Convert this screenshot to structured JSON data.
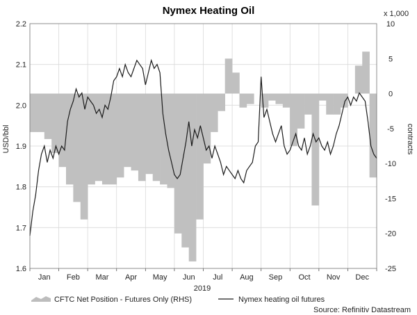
{
  "chart_data": {
    "type": "line",
    "title": "Nymex Heating Oil",
    "year_label": "2019",
    "source": "Source: Refinitiv Datastream",
    "ylabel_left": "USD/bbl",
    "ylabel_right": "contracts",
    "right_multiplier": "x 1,000",
    "left_axis": {
      "ylim": [
        1.6,
        2.2
      ],
      "ticks": [
        "1.6",
        "1.7",
        "1.8",
        "1.9",
        "2.0",
        "2.1",
        "2.2"
      ]
    },
    "right_axis": {
      "ylim": [
        -25,
        10
      ],
      "ticks": [
        "-25",
        "-20",
        "-15",
        "-10",
        "-5",
        "0",
        "5",
        "10"
      ]
    },
    "x_range": [
      0,
      12
    ],
    "x_tick_labels": [
      "Jan",
      "Feb",
      "Mar",
      "Apr",
      "May",
      "Jun",
      "Jul",
      "Aug",
      "Sep",
      "Oct",
      "Nov",
      "Dec"
    ],
    "grid": true,
    "legend_position": "bottom",
    "series": [
      {
        "name": "CFTC Net Position - Futures Only (RHS)",
        "kind": "area",
        "axis": "right",
        "color": "#c0c0c0",
        "points": [
          [
            0.0,
            -5.5
          ],
          [
            0.25,
            -5.5
          ],
          [
            0.5,
            -6.5
          ],
          [
            0.75,
            -8.5
          ],
          [
            1.0,
            -10.5
          ],
          [
            1.25,
            -13
          ],
          [
            1.5,
            -15.5
          ],
          [
            1.75,
            -18
          ],
          [
            2.0,
            -13
          ],
          [
            2.25,
            -12.5
          ],
          [
            2.5,
            -13
          ],
          [
            2.75,
            -13
          ],
          [
            3.0,
            -12
          ],
          [
            3.25,
            -10.5
          ],
          [
            3.5,
            -11
          ],
          [
            3.75,
            -12.5
          ],
          [
            4.0,
            -11.5
          ],
          [
            4.25,
            -12.5
          ],
          [
            4.5,
            -13
          ],
          [
            4.75,
            -13.5
          ],
          [
            5.0,
            -20
          ],
          [
            5.25,
            -22
          ],
          [
            5.5,
            -24
          ],
          [
            5.75,
            -18
          ],
          [
            6.0,
            -10
          ],
          [
            6.25,
            -5.5
          ],
          [
            6.5,
            -2.5
          ],
          [
            6.75,
            5
          ],
          [
            7.0,
            3
          ],
          [
            7.25,
            -2
          ],
          [
            7.5,
            -1.5
          ],
          [
            7.75,
            0
          ],
          [
            8.0,
            -2
          ],
          [
            8.25,
            -1
          ],
          [
            8.5,
            -1.5
          ],
          [
            8.75,
            -2
          ],
          [
            9.0,
            -7.5
          ],
          [
            9.25,
            -5
          ],
          [
            9.5,
            -3
          ],
          [
            9.75,
            -16
          ],
          [
            10.0,
            -1
          ],
          [
            10.25,
            -3
          ],
          [
            10.5,
            -3
          ],
          [
            10.75,
            -2
          ],
          [
            11.0,
            0
          ],
          [
            11.25,
            4
          ],
          [
            11.5,
            6
          ],
          [
            11.75,
            -12
          ]
        ]
      },
      {
        "name": "Nymex heating oil futures",
        "kind": "line",
        "axis": "left",
        "color": "#1a1a1a",
        "points": [
          [
            0.0,
            1.68
          ],
          [
            0.1,
            1.74
          ],
          [
            0.2,
            1.78
          ],
          [
            0.3,
            1.84
          ],
          [
            0.4,
            1.88
          ],
          [
            0.5,
            1.9
          ],
          [
            0.6,
            1.86
          ],
          [
            0.7,
            1.89
          ],
          [
            0.8,
            1.87
          ],
          [
            0.9,
            1.9
          ],
          [
            1.0,
            1.88
          ],
          [
            1.1,
            1.9
          ],
          [
            1.2,
            1.89
          ],
          [
            1.3,
            1.96
          ],
          [
            1.4,
            1.99
          ],
          [
            1.5,
            2.01
          ],
          [
            1.6,
            2.04
          ],
          [
            1.7,
            2.02
          ],
          [
            1.8,
            2.03
          ],
          [
            1.9,
            1.99
          ],
          [
            2.0,
            2.02
          ],
          [
            2.1,
            2.01
          ],
          [
            2.2,
            2.0
          ],
          [
            2.3,
            1.98
          ],
          [
            2.4,
            1.99
          ],
          [
            2.5,
            1.97
          ],
          [
            2.6,
            2.0
          ],
          [
            2.7,
            1.99
          ],
          [
            2.8,
            2.02
          ],
          [
            2.9,
            2.06
          ],
          [
            3.0,
            2.07
          ],
          [
            3.1,
            2.09
          ],
          [
            3.2,
            2.07
          ],
          [
            3.3,
            2.1
          ],
          [
            3.4,
            2.08
          ],
          [
            3.5,
            2.07
          ],
          [
            3.6,
            2.09
          ],
          [
            3.7,
            2.11
          ],
          [
            3.8,
            2.1
          ],
          [
            3.9,
            2.09
          ],
          [
            4.0,
            2.05
          ],
          [
            4.1,
            2.08
          ],
          [
            4.2,
            2.11
          ],
          [
            4.3,
            2.09
          ],
          [
            4.4,
            2.1
          ],
          [
            4.5,
            2.08
          ],
          [
            4.6,
            1.98
          ],
          [
            4.7,
            1.93
          ],
          [
            4.8,
            1.89
          ],
          [
            4.9,
            1.86
          ],
          [
            5.0,
            1.83
          ],
          [
            5.1,
            1.82
          ],
          [
            5.2,
            1.83
          ],
          [
            5.3,
            1.87
          ],
          [
            5.4,
            1.91
          ],
          [
            5.5,
            1.96
          ],
          [
            5.6,
            1.9
          ],
          [
            5.7,
            1.94
          ],
          [
            5.8,
            1.92
          ],
          [
            5.9,
            1.95
          ],
          [
            6.0,
            1.92
          ],
          [
            6.1,
            1.89
          ],
          [
            6.2,
            1.9
          ],
          [
            6.3,
            1.87
          ],
          [
            6.4,
            1.9
          ],
          [
            6.5,
            1.88
          ],
          [
            6.6,
            1.86
          ],
          [
            6.7,
            1.83
          ],
          [
            6.8,
            1.85
          ],
          [
            6.9,
            1.84
          ],
          [
            7.0,
            1.83
          ],
          [
            7.1,
            1.82
          ],
          [
            7.2,
            1.84
          ],
          [
            7.3,
            1.82
          ],
          [
            7.4,
            1.81
          ],
          [
            7.5,
            1.84
          ],
          [
            7.6,
            1.85
          ],
          [
            7.7,
            1.86
          ],
          [
            7.8,
            1.9
          ],
          [
            7.9,
            1.91
          ],
          [
            8.0,
            2.07
          ],
          [
            8.1,
            1.97
          ],
          [
            8.2,
            1.99
          ],
          [
            8.3,
            1.96
          ],
          [
            8.4,
            1.93
          ],
          [
            8.5,
            1.91
          ],
          [
            8.6,
            1.93
          ],
          [
            8.7,
            1.95
          ],
          [
            8.8,
            1.9
          ],
          [
            8.9,
            1.88
          ],
          [
            9.0,
            1.89
          ],
          [
            9.1,
            1.91
          ],
          [
            9.2,
            1.93
          ],
          [
            9.3,
            1.9
          ],
          [
            9.4,
            1.89
          ],
          [
            9.5,
            1.92
          ],
          [
            9.6,
            1.88
          ],
          [
            9.7,
            1.9
          ],
          [
            9.8,
            1.93
          ],
          [
            9.9,
            1.91
          ],
          [
            10.0,
            1.92
          ],
          [
            10.1,
            1.9
          ],
          [
            10.2,
            1.89
          ],
          [
            10.3,
            1.91
          ],
          [
            10.4,
            1.88
          ],
          [
            10.5,
            1.9
          ],
          [
            10.6,
            1.93
          ],
          [
            10.7,
            1.95
          ],
          [
            10.8,
            1.98
          ],
          [
            10.9,
            2.01
          ],
          [
            11.0,
            2.02
          ],
          [
            11.1,
            2.0
          ],
          [
            11.2,
            2.02
          ],
          [
            11.3,
            2.01
          ],
          [
            11.4,
            2.03
          ],
          [
            11.5,
            2.02
          ],
          [
            11.6,
            2.01
          ],
          [
            11.7,
            1.96
          ],
          [
            11.8,
            1.9
          ],
          [
            11.9,
            1.88
          ],
          [
            12.0,
            1.87
          ]
        ]
      }
    ]
  }
}
